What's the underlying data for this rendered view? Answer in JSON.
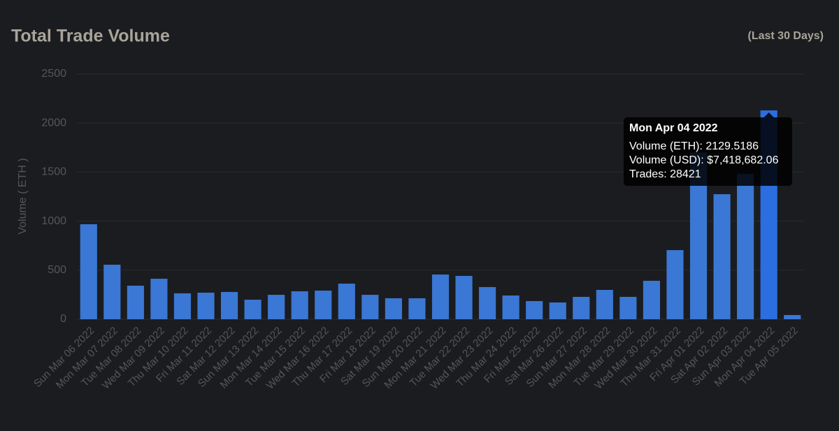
{
  "chart_data": {
    "type": "bar",
    "title": "Total Trade Volume",
    "subtitle": "(Last 30 Days)",
    "y_label": "Volume ( ETH )",
    "categories": [
      "Sun Mar 06 2022",
      "Mon Mar 07 2022",
      "Tue Mar 08 2022",
      "Wed Mar 09 2022",
      "Thu Mar 10 2022",
      "Fri Mar 11 2022",
      "Sat Mar 12 2022",
      "Sun Mar 13 2022",
      "Mon Mar 14 2022",
      "Tue Mar 15 2022",
      "Wed Mar 16 2022",
      "Thu Mar 17 2022",
      "Fri Mar 18 2022",
      "Sat Mar 19 2022",
      "Sun Mar 20 2022",
      "Mon Mar 21 2022",
      "Tue Mar 22 2022",
      "Wed Mar 23 2022",
      "Thu Mar 24 2022",
      "Fri Mar 25 2022",
      "Sat Mar 26 2022",
      "Sun Mar 27 2022",
      "Mon Mar 28 2022",
      "Tue Mar 29 2022",
      "Wed Mar 30 2022",
      "Thu Mar 31 2022",
      "Fri Apr 01 2022",
      "Sat Apr 02 2022",
      "Sun Apr 03 2022",
      "Mon Apr 04 2022",
      "Tue Apr 05 2022"
    ],
    "values": [
      969,
      556,
      342,
      413,
      264,
      271,
      278,
      199,
      249,
      285,
      292,
      363,
      249,
      214,
      214,
      456,
      442,
      328,
      242,
      185,
      171,
      228,
      299,
      228,
      392,
      705,
      1700,
      1275,
      1481,
      2129.5186,
      43
    ],
    "color": "#3b77d4",
    "highlight_color": "#2a6ee0",
    "ylim": [
      0,
      2500
    ],
    "yticks": [
      0,
      500,
      1000,
      1500,
      2000,
      2500
    ],
    "grid": true,
    "tooltip": {
      "title": "Mon Apr 04 2022",
      "lines": [
        "Volume (ETH): 2129.5186",
        "Volume (USD): $7,418,682.06",
        "Trades: 28421"
      ]
    }
  }
}
